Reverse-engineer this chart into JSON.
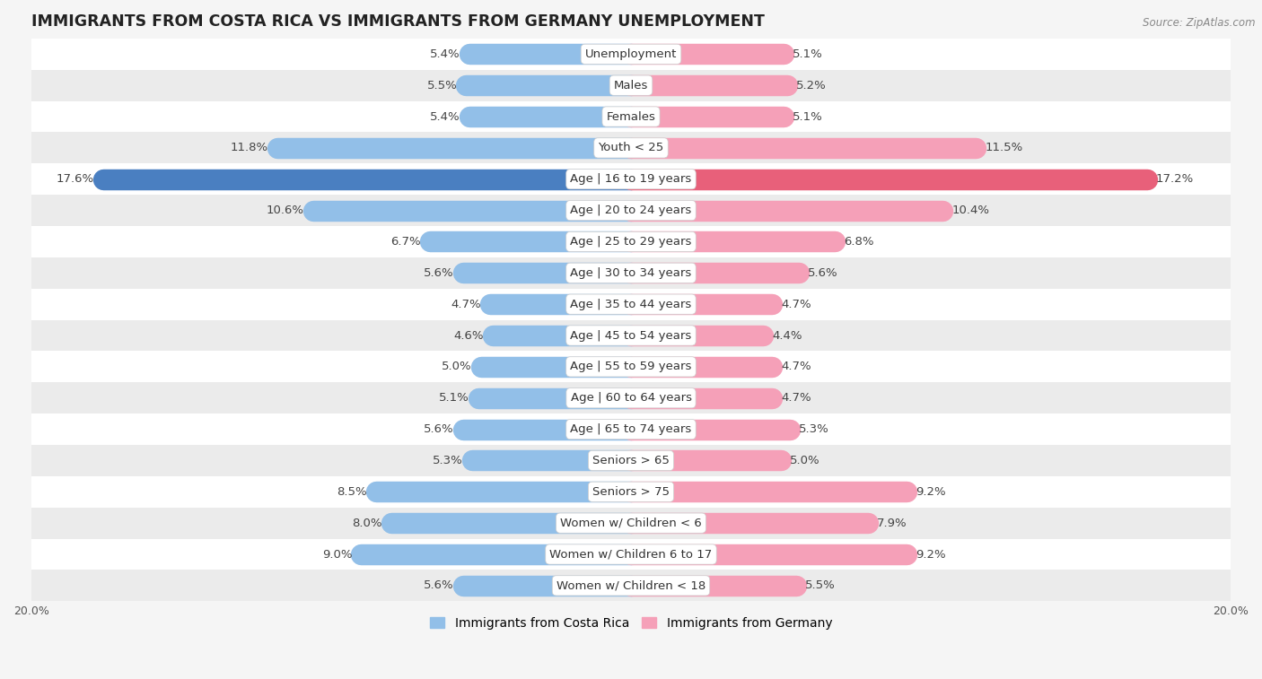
{
  "title": "IMMIGRANTS FROM COSTA RICA VS IMMIGRANTS FROM GERMANY UNEMPLOYMENT",
  "source": "Source: ZipAtlas.com",
  "categories": [
    "Unemployment",
    "Males",
    "Females",
    "Youth < 25",
    "Age | 16 to 19 years",
    "Age | 20 to 24 years",
    "Age | 25 to 29 years",
    "Age | 30 to 34 years",
    "Age | 35 to 44 years",
    "Age | 45 to 54 years",
    "Age | 55 to 59 years",
    "Age | 60 to 64 years",
    "Age | 65 to 74 years",
    "Seniors > 65",
    "Seniors > 75",
    "Women w/ Children < 6",
    "Women w/ Children 6 to 17",
    "Women w/ Children < 18"
  ],
  "costa_rica": [
    5.4,
    5.5,
    5.4,
    11.8,
    17.6,
    10.6,
    6.7,
    5.6,
    4.7,
    4.6,
    5.0,
    5.1,
    5.6,
    5.3,
    8.5,
    8.0,
    9.0,
    5.6
  ],
  "germany": [
    5.1,
    5.2,
    5.1,
    11.5,
    17.2,
    10.4,
    6.8,
    5.6,
    4.7,
    4.4,
    4.7,
    4.7,
    5.3,
    5.0,
    9.2,
    7.9,
    9.2,
    5.5
  ],
  "costa_rica_color": "#92bfe8",
  "germany_color": "#f5a0b8",
  "costa_rica_highlight_color": "#4a7fc1",
  "germany_highlight_color": "#e8607a",
  "highlight_row": 4,
  "xlim": 20.0,
  "bar_height": 0.62,
  "bg_color": "#f5f5f5",
  "row_colors": [
    "#ffffff",
    "#ebebeb"
  ],
  "label_fontsize": 9.5,
  "value_fontsize": 9.5,
  "title_fontsize": 12.5,
  "legend_fontsize": 10,
  "axis_label_fontsize": 9
}
